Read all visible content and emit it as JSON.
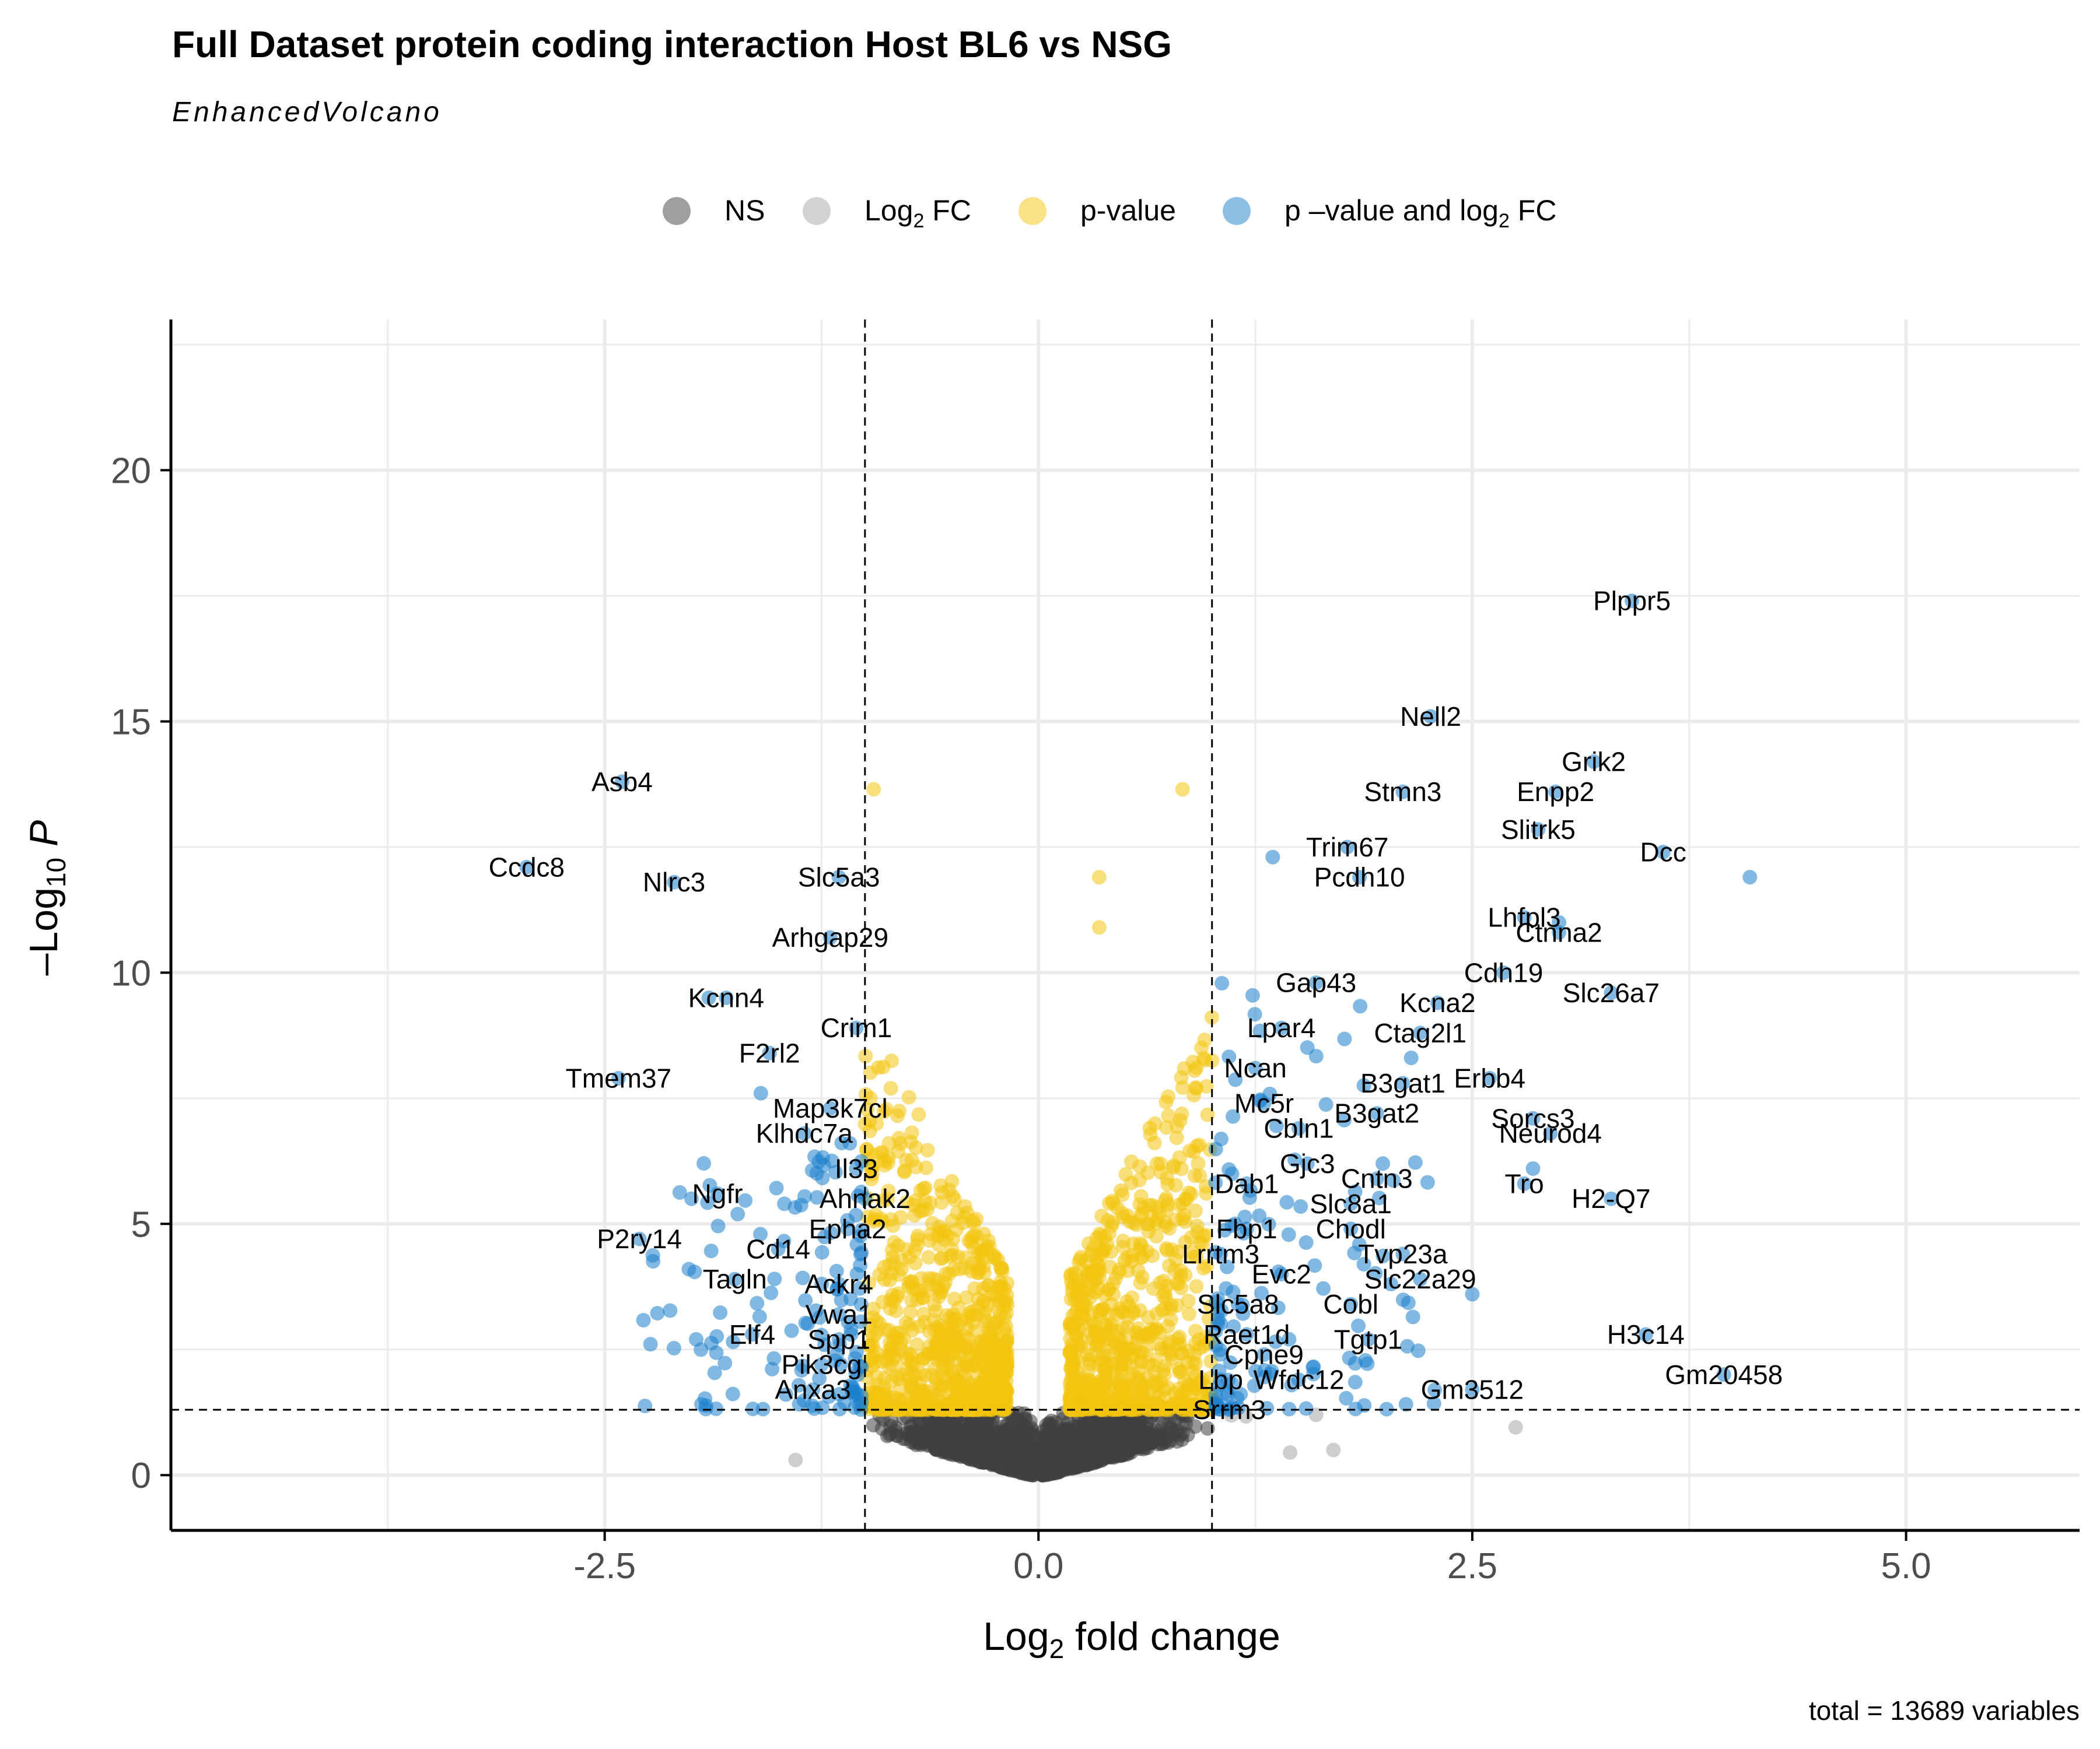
{
  "title": "Full Dataset protein coding interaction Host BL6 vs NSG",
  "subtitle": "EnhancedVolcano",
  "caption": "total = 13689 variables",
  "legend": {
    "items": [
      {
        "key": "ns",
        "label": "NS",
        "color": "#4d4d4d",
        "opacity": 0.5
      },
      {
        "key": "fc",
        "label": "Log",
        "sub": "2",
        "tail": " FC",
        "color": "#a0a0a0",
        "opacity": 0.5
      },
      {
        "key": "p",
        "label": "p-value",
        "color": "#f0c419",
        "opacity": 0.5
      },
      {
        "key": "pfc",
        "label": "p –value and log",
        "sub": "2",
        "tail": " FC",
        "color": "#1f7dc8",
        "opacity": 0.5
      }
    ]
  },
  "colors": {
    "ns": "#404040",
    "fc": "#a6a6a6",
    "p": "#f2c40f",
    "pfc": "#1b80cc",
    "grid": "#ebebeb",
    "tick_text": "#4d4d4d"
  },
  "chart_data": {
    "type": "scatter",
    "xlabel": "Log2 fold change",
    "xlabel_parts": {
      "main": "Log",
      "sub": "2",
      "tail": " fold change"
    },
    "ylabel": "-Log10 P",
    "ylabel_parts": {
      "main": "–Log",
      "sub": "10",
      "tail": " P"
    },
    "xlim": [
      -5,
      6
    ],
    "ylim": [
      -1.1,
      23
    ],
    "xticks": [
      -2.5,
      0.0,
      2.5,
      5.0
    ],
    "xtick_labels": [
      "-2.5",
      "0.0",
      "2.5",
      "5.0"
    ],
    "yticks": [
      0,
      5,
      10,
      15,
      20
    ],
    "ytick_labels": [
      "0",
      "5",
      "10",
      "15",
      "20"
    ],
    "grid": true,
    "legend_position": "top",
    "thresholds": {
      "log2fc": [
        -1,
        1
      ],
      "p": 1.3
    },
    "total_variables": 13689,
    "labeled_points": [
      {
        "gene": "Plppr5",
        "x": 3.42,
        "y": 17.4
      },
      {
        "gene": "Nell2",
        "x": 2.26,
        "y": 15.1
      },
      {
        "gene": "Grik2",
        "x": 3.2,
        "y": 14.2
      },
      {
        "gene": "Asb4",
        "x": -2.4,
        "y": 13.8
      },
      {
        "gene": "Stmn3",
        "x": 2.1,
        "y": 13.6
      },
      {
        "gene": "Enpp2",
        "x": 2.98,
        "y": 13.6
      },
      {
        "gene": "Slitrk5",
        "x": 2.88,
        "y": 12.85
      },
      {
        "gene": "Trim67",
        "x": 1.78,
        "y": 12.5
      },
      {
        "gene": "Dcc",
        "x": 3.6,
        "y": 12.4
      },
      {
        "gene": "Ccdc8",
        "x": -2.95,
        "y": 12.1
      },
      {
        "gene": "Slc5a3",
        "x": -1.15,
        "y": 11.9
      },
      {
        "gene": "Nlrc3",
        "x": -2.1,
        "y": 11.8
      },
      {
        "gene": "Pcdh10",
        "x": 1.85,
        "y": 11.9
      },
      {
        "gene": "Lhfpl3",
        "x": 2.8,
        "y": 11.1
      },
      {
        "gene": "Ctnna2",
        "x": 3.0,
        "y": 10.8
      },
      {
        "gene": "Arhgap29",
        "x": -1.2,
        "y": 10.7
      },
      {
        "gene": "Gap43",
        "x": 1.6,
        "y": 9.8
      },
      {
        "gene": "Cdh19",
        "x": 2.68,
        "y": 10.0
      },
      {
        "gene": "Kcnn4",
        "x": -1.8,
        "y": 9.5
      },
      {
        "gene": "Kcna2",
        "x": 2.3,
        "y": 9.4
      },
      {
        "gene": "Slc26a7",
        "x": 3.3,
        "y": 9.6
      },
      {
        "gene": "Lpar4",
        "x": 1.4,
        "y": 8.9
      },
      {
        "gene": "Crim1",
        "x": -1.05,
        "y": 8.9
      },
      {
        "gene": "Ctag2l1",
        "x": 2.2,
        "y": 8.8
      },
      {
        "gene": "F2rl2",
        "x": -1.55,
        "y": 8.4
      },
      {
        "gene": "Ncan",
        "x": 1.25,
        "y": 8.1
      },
      {
        "gene": "B3gat1",
        "x": 2.1,
        "y": 7.8
      },
      {
        "gene": "Erbb4",
        "x": 2.6,
        "y": 7.9
      },
      {
        "gene": "Tmem37",
        "x": -2.42,
        "y": 7.9
      },
      {
        "gene": "Mc5r",
        "x": 1.3,
        "y": 7.4
      },
      {
        "gene": "Map3k7cl",
        "x": -1.2,
        "y": 7.3
      },
      {
        "gene": "B3gat2",
        "x": 1.95,
        "y": 7.2
      },
      {
        "gene": "Sorcs3",
        "x": 2.85,
        "y": 7.1
      },
      {
        "gene": "Cbln1",
        "x": 1.5,
        "y": 6.9
      },
      {
        "gene": "Klhdc7a",
        "x": -1.35,
        "y": 6.8
      },
      {
        "gene": "Neurod4",
        "x": 2.95,
        "y": 6.8
      },
      {
        "gene": "Gjc3",
        "x": 1.55,
        "y": 6.2
      },
      {
        "gene": "Il33",
        "x": -1.05,
        "y": 6.1
      },
      {
        "gene": "Cntn3",
        "x": 1.95,
        "y": 5.9
      },
      {
        "gene": "Dab1",
        "x": 1.2,
        "y": 5.8
      },
      {
        "gene": "Tro",
        "x": 2.8,
        "y": 5.8
      },
      {
        "gene": "Ngfr",
        "x": -1.85,
        "y": 5.6
      },
      {
        "gene": "H2-Q7",
        "x": 3.3,
        "y": 5.5
      },
      {
        "gene": "Slc8a1",
        "x": 1.8,
        "y": 5.4
      },
      {
        "gene": "Ahnak2",
        "x": -1.0,
        "y": 5.5
      },
      {
        "gene": "P2ry14",
        "x": -2.3,
        "y": 4.7
      },
      {
        "gene": "Fbp1",
        "x": 1.2,
        "y": 4.9
      },
      {
        "gene": "Chodl",
        "x": 1.8,
        "y": 4.9
      },
      {
        "gene": "Epha2",
        "x": -1.1,
        "y": 4.9
      },
      {
        "gene": "Cd14",
        "x": -1.5,
        "y": 4.5
      },
      {
        "gene": "Lrrtm3",
        "x": 1.05,
        "y": 4.4
      },
      {
        "gene": "Tvp23a",
        "x": 2.1,
        "y": 4.4
      },
      {
        "gene": "Evc2",
        "x": 1.4,
        "y": 4.0
      },
      {
        "gene": "Slc22a29",
        "x": 2.2,
        "y": 3.9
      },
      {
        "gene": "Tagln",
        "x": -1.75,
        "y": 3.9
      },
      {
        "gene": "Ackr4",
        "x": -1.15,
        "y": 3.8
      },
      {
        "gene": "Slc5a8",
        "x": 1.15,
        "y": 3.4
      },
      {
        "gene": "Cobl",
        "x": 1.8,
        "y": 3.4
      },
      {
        "gene": "Vwa1",
        "x": -1.15,
        "y": 3.2
      },
      {
        "gene": "Raet1d",
        "x": 1.2,
        "y": 2.8
      },
      {
        "gene": "Elf4",
        "x": -1.65,
        "y": 2.8
      },
      {
        "gene": "H3c14",
        "x": 3.5,
        "y": 2.8
      },
      {
        "gene": "Spp1",
        "x": -1.15,
        "y": 2.7
      },
      {
        "gene": "Tgtp1",
        "x": 1.9,
        "y": 2.7
      },
      {
        "gene": "Cpne9",
        "x": 1.3,
        "y": 2.4
      },
      {
        "gene": "Pik3cg",
        "x": -1.25,
        "y": 2.2
      },
      {
        "gene": "Gm20458",
        "x": 3.95,
        "y": 2.0
      },
      {
        "gene": "Lbp",
        "x": 1.05,
        "y": 1.9
      },
      {
        "gene": "Wfdc12",
        "x": 1.5,
        "y": 1.9
      },
      {
        "gene": "Anxa3",
        "x": -1.3,
        "y": 1.7
      },
      {
        "gene": "Gm3512",
        "x": 2.5,
        "y": 1.7
      },
      {
        "gene": "Srrm3",
        "x": 1.1,
        "y": 1.3
      }
    ],
    "extra_points": [
      {
        "category": "pfc",
        "x": 4.1,
        "y": 11.9
      },
      {
        "category": "pfc",
        "x": 1.35,
        "y": 12.3
      },
      {
        "category": "pfc",
        "x": -1.9,
        "y": 9.5
      },
      {
        "category": "pfc",
        "x": -1.6,
        "y": 7.6
      },
      {
        "category": "pfc",
        "x": -2.0,
        "y": 5.5
      },
      {
        "category": "pfc",
        "x": 3.0,
        "y": 11.0
      },
      {
        "category": "pfc",
        "x": 2.85,
        "y": 6.1
      },
      {
        "category": "pfc",
        "x": 2.5,
        "y": 3.6
      },
      {
        "category": "p",
        "x": -0.95,
        "y": 13.65
      },
      {
        "category": "p",
        "x": 0.83,
        "y": 13.65
      },
      {
        "category": "p",
        "x": 0.35,
        "y": 11.9
      },
      {
        "category": "p",
        "x": 0.35,
        "y": 10.9
      },
      {
        "category": "fc",
        "x": 2.75,
        "y": 0.95
      },
      {
        "category": "fc",
        "x": 1.7,
        "y": 0.5
      },
      {
        "category": "fc",
        "x": 1.45,
        "y": 0.45
      },
      {
        "category": "fc",
        "x": -1.4,
        "y": 0.3
      },
      {
        "category": "fc",
        "x": 1.6,
        "y": 1.2
      }
    ]
  }
}
